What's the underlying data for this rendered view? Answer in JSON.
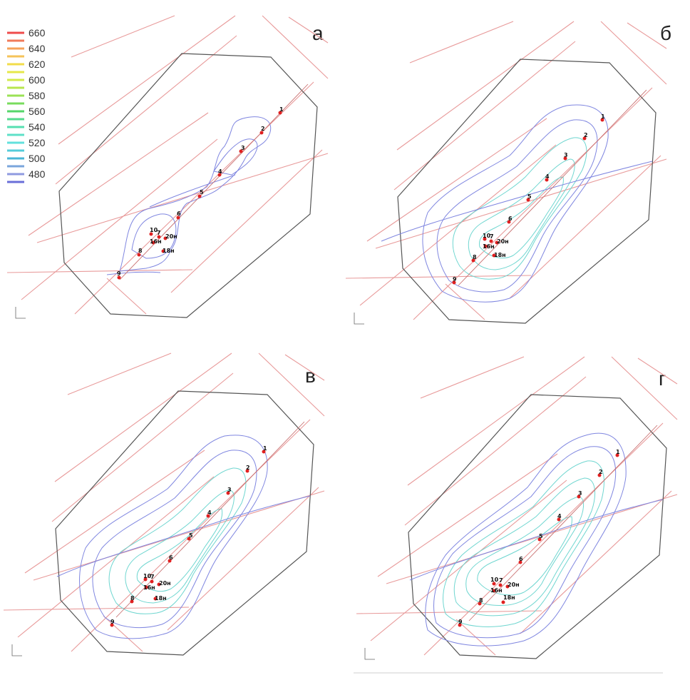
{
  "legend": {
    "items": [
      {
        "label": "660",
        "color": "#ef4b4b"
      },
      {
        "label": "640",
        "color": "#f5a25a"
      },
      {
        "label": "620",
        "color": "#f2dc4a"
      },
      {
        "label": "600",
        "color": "#d3ea4a"
      },
      {
        "label": "580",
        "color": "#9be255"
      },
      {
        "label": "560",
        "color": "#55d66a"
      },
      {
        "label": "540",
        "color": "#56dfb0"
      },
      {
        "label": "520",
        "color": "#62e1dd"
      },
      {
        "label": "500",
        "color": "#4ab6d6"
      },
      {
        "label": "480",
        "color": "#8f9ae0"
      },
      {
        "label": "",
        "color": "#6a6fd8"
      }
    ],
    "label_list": [
      "660",
      "640",
      "620",
      "600",
      "580",
      "560",
      "540",
      "520",
      "500",
      "480"
    ]
  },
  "panels": [
    {
      "label": "а"
    },
    {
      "label": "б"
    },
    {
      "label": "в"
    },
    {
      "label": "г"
    }
  ],
  "wells": [
    "1",
    "2",
    "3",
    "4",
    "5",
    "6",
    "8",
    "9",
    "10",
    "7",
    "16н",
    "20н",
    "18н"
  ],
  "colors": {
    "fault": "#e89a9a",
    "boundary": "#555555",
    "isoline_blue": "#7f86e0",
    "isoline_cyan": "#6fd6d0",
    "well": "#e02020"
  }
}
